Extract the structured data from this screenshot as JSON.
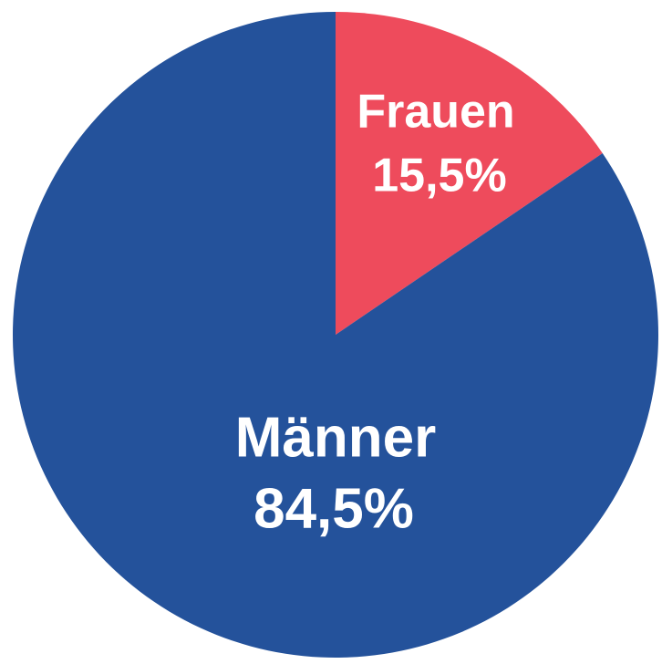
{
  "chart_data": {
    "type": "pie",
    "start": "top",
    "direction": "clockwise",
    "slices": [
      {
        "label": "Frauen",
        "value": 15.5,
        "value_label": "15,5%",
        "color": "#ee4b5c"
      },
      {
        "label": "Männer",
        "value": 84.5,
        "value_label": "84,5%",
        "color": "#24529b"
      }
    ]
  }
}
